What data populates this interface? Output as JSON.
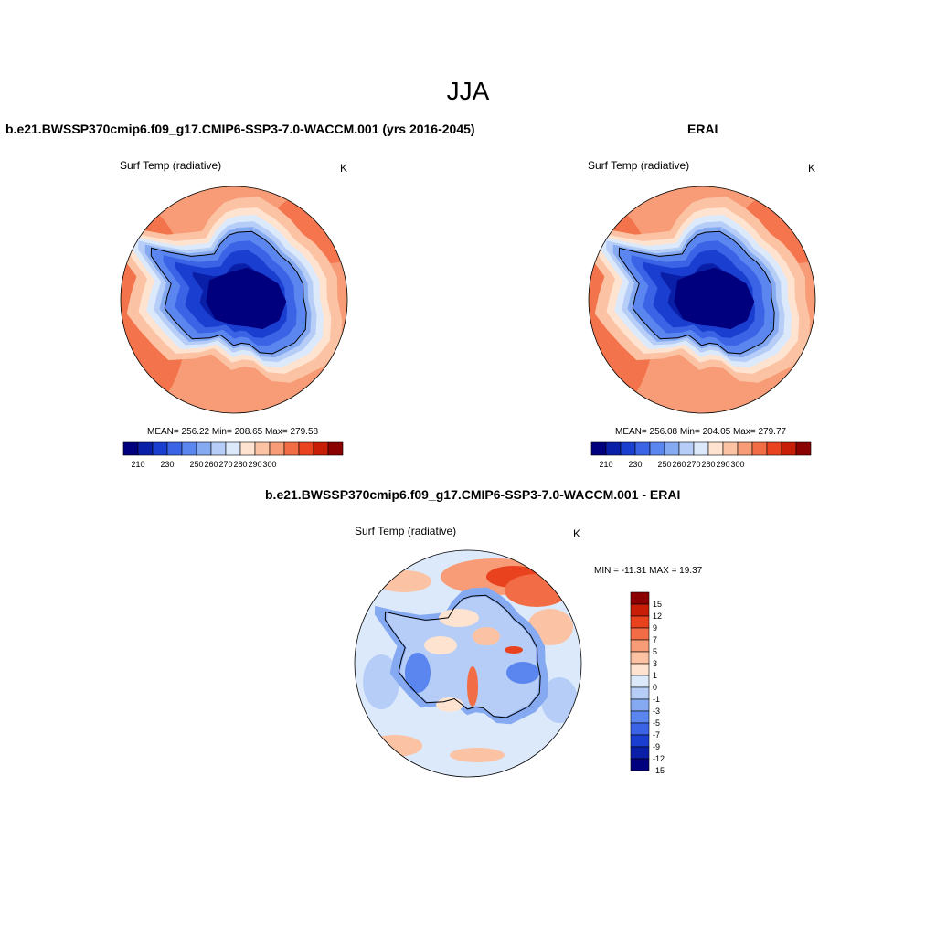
{
  "figure": {
    "title": "JJA",
    "colormap": [
      "#00007f",
      "#0a1fa8",
      "#1a3fd0",
      "#3a63e6",
      "#5b86f0",
      "#86aaf2",
      "#b5cdf7",
      "#dce9fb",
      "#fde3d0",
      "#fbc3a4",
      "#f79c76",
      "#f26c45",
      "#e8421f",
      "#c81d07",
      "#8b0000"
    ],
    "diff_colormap": [
      "#00007f",
      "#0a1fa8",
      "#1a3fd0",
      "#3a63e6",
      "#5b86f0",
      "#86aaf2",
      "#b5cdf7",
      "#dce9fb",
      "#fde3d0",
      "#fbc3a4",
      "#f79c76",
      "#f26c45",
      "#e8421f",
      "#c81d07",
      "#8b0000"
    ]
  },
  "chart_data": [
    {
      "type": "heatmap",
      "title": "b.e21.BWSSP370cmip6.f09_g17.CMIP6-SSP3-7.0-WACCM.001 (yrs 2016-2045)",
      "variable": "Surf Temp (radiative)",
      "units": "K",
      "stats_text": "MEAN= 256.22  Min= 208.65  Max= 279.58",
      "stats": {
        "mean": 256.22,
        "min": 208.65,
        "max": 279.58
      },
      "levels": [
        205,
        210,
        215,
        220,
        225,
        230,
        235,
        240,
        245,
        250,
        255,
        260,
        265,
        270,
        275,
        280
      ],
      "tick_labels": [
        "210",
        "230",
        "250",
        "260",
        "270",
        "280",
        "290",
        "300"
      ]
    },
    {
      "type": "heatmap",
      "title": "ERAI",
      "variable": "Surf Temp (radiative)",
      "units": "K",
      "stats_text": "MEAN= 256.08  Min= 204.05  Max= 279.77",
      "stats": {
        "mean": 256.08,
        "min": 204.05,
        "max": 279.77
      },
      "levels": [
        205,
        210,
        215,
        220,
        225,
        230,
        235,
        240,
        245,
        250,
        255,
        260,
        265,
        270,
        275,
        280
      ],
      "tick_labels": [
        "210",
        "230",
        "250",
        "260",
        "270",
        "280",
        "290",
        "300"
      ]
    },
    {
      "type": "heatmap",
      "title": "b.e21.BWSSP370cmip6.f09_g17.CMIP6-SSP3-7.0-WACCM.001 - ERAI",
      "variable": "Surf Temp (radiative)",
      "units": "K",
      "stats_text": "MIN = -11.31 MAX =  19.37",
      "stats": {
        "min": -11.31,
        "max": 19.37
      },
      "levels": [
        -15,
        -12,
        -9,
        -7,
        -5,
        -3,
        -1,
        0,
        1,
        3,
        5,
        7,
        9,
        12,
        15
      ],
      "tick_labels": [
        "15",
        "12",
        "9",
        "7",
        "5",
        "3",
        "1",
        "0",
        "-1",
        "-3",
        "-5",
        "-7",
        "-9",
        "-12",
        "-15"
      ]
    }
  ]
}
